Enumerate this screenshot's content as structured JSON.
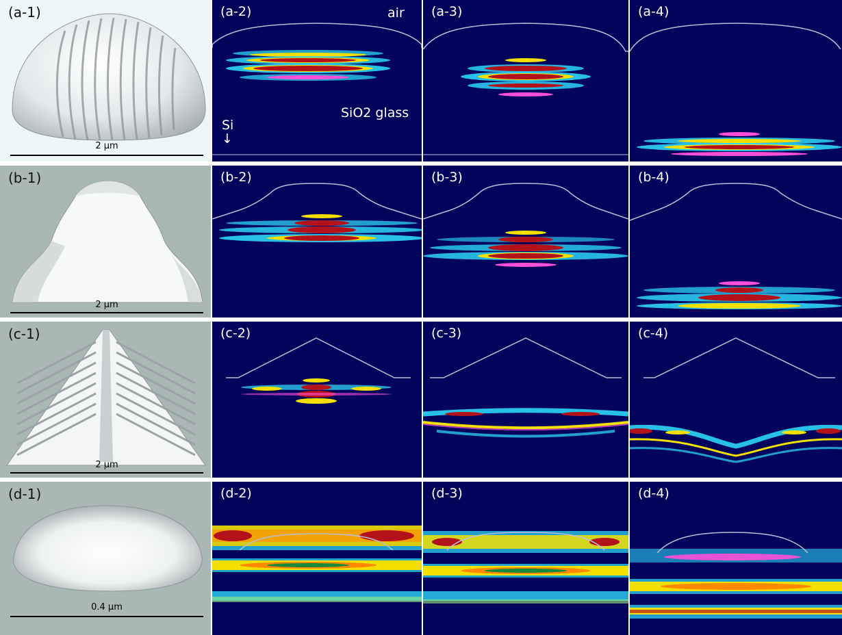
{
  "rows": [
    {
      "panels": [
        "(a-1)",
        "(a-2)",
        "(a-3)",
        "(a-4)"
      ],
      "scale": "2 µm",
      "thumb_bg": "#eef7f8",
      "shape": "grooved-dome"
    },
    {
      "panels": [
        "(b-1)",
        "(b-2)",
        "(b-3)",
        "(b-4)"
      ],
      "scale": "2 µm",
      "thumb_bg": "#aab8b5",
      "shape": "stepped-dome"
    },
    {
      "panels": [
        "(c-1)",
        "(c-2)",
        "(c-3)",
        "(c-4)"
      ],
      "scale": "2 µm",
      "thumb_bg": "#aab8b5",
      "shape": "grooved-prism"
    },
    {
      "panels": [
        "(d-1)",
        "(d-2)",
        "(d-3)",
        "(d-4)"
      ],
      "scale": "0.4 µm",
      "thumb_bg": "#aab8b5",
      "shape": "small-dome"
    }
  ],
  "annotations": {
    "air": "air",
    "glass": "SiO2 glass",
    "si": "Si",
    "arrow": "↓"
  },
  "colors": {
    "field_bg": "#02045c",
    "outline": "#b9bfd6",
    "map_red": "#b3121a",
    "map_yellow": "#f3e000",
    "map_cyan": "#2fe2ff",
    "map_magenta": "#ff4fd8"
  }
}
